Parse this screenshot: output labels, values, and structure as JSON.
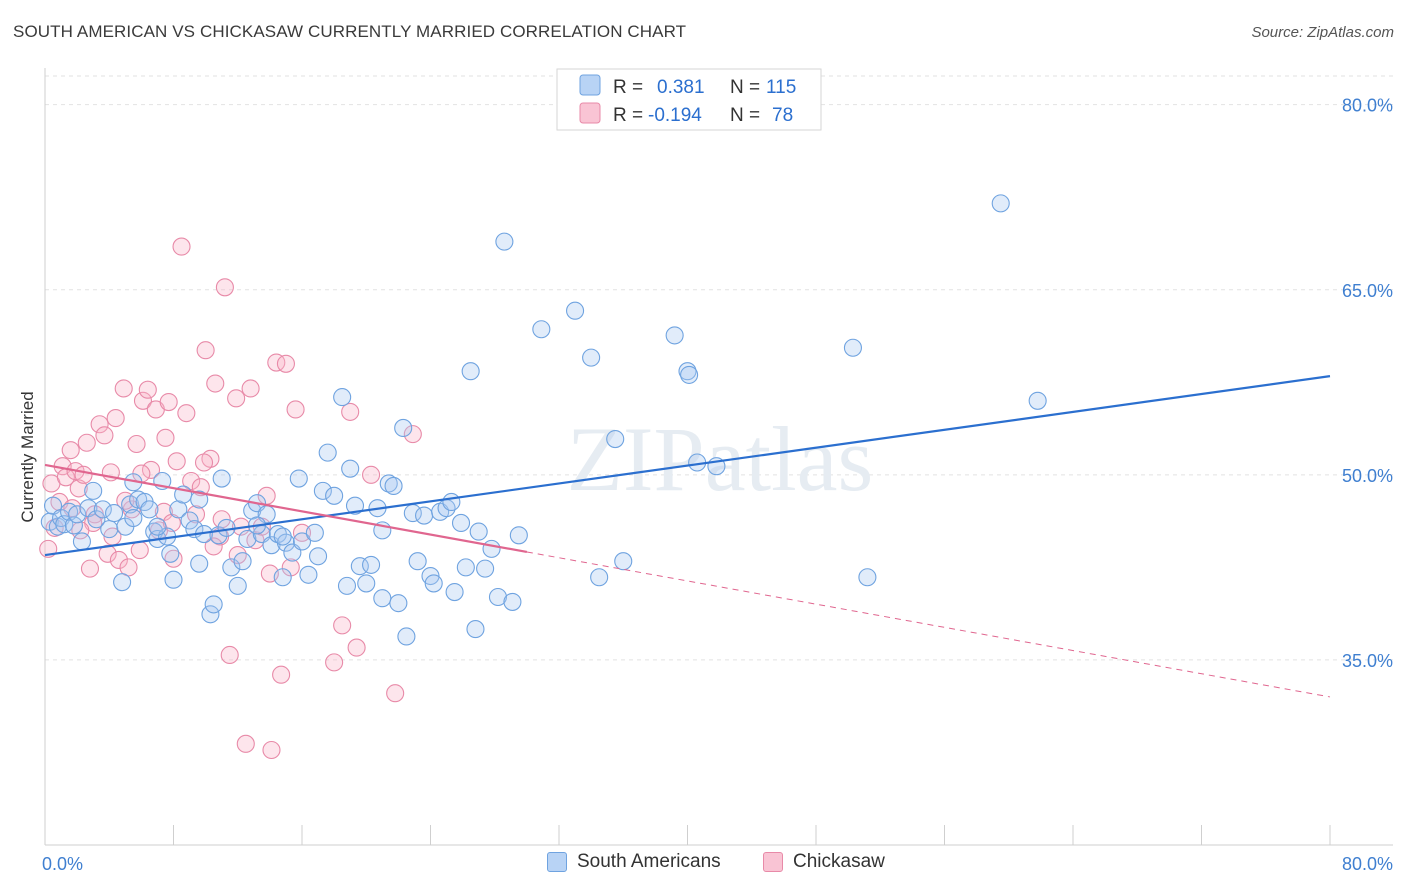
{
  "header": {
    "title": "SOUTH AMERICAN VS CHICKASAW CURRENTLY MARRIED CORRELATION CHART",
    "source": "Source: ZipAtlas.com"
  },
  "watermark": "ZIPatlas",
  "chart_data": {
    "type": "scatter",
    "title": "SOUTH AMERICAN VS CHICKASAW CURRENTLY MARRIED CORRELATION CHART",
    "xlabel": "",
    "ylabel": "Currently Married",
    "xlim": [
      0,
      80
    ],
    "ylim": [
      20,
      82
    ],
    "x_tick_labels": [
      "0.0%",
      "80.0%"
    ],
    "y_ticks": [
      35,
      50,
      65,
      80
    ],
    "y_tick_labels": [
      "35.0%",
      "50.0%",
      "65.0%",
      "80.0%"
    ],
    "grid": true,
    "legend_position": "top-center",
    "legend": [
      {
        "name": "South Americans",
        "r_label": "R =",
        "r": "0.381",
        "n_label": "N =",
        "n": "115",
        "color": "#6fa3e0",
        "fill": "#b8d3f5"
      },
      {
        "name": "Chickasaw",
        "r_label": "R =",
        "r": "-0.194",
        "n_label": "N =",
        "n": "78",
        "color": "#e88aa8",
        "fill": "#f9c4d4"
      }
    ],
    "series": [
      {
        "name": "South Americans",
        "color": "#6fa3e0",
        "trend": {
          "x0": 0,
          "y0": 43.5,
          "x1": 80,
          "y1": 58.0,
          "color": "#2b6fcf"
        },
        "points": [
          [
            0.3,
            46.2
          ],
          [
            0.5,
            47.5
          ],
          [
            0.8,
            45.8
          ],
          [
            1.0,
            46.5
          ],
          [
            1.2,
            46.0
          ],
          [
            1.5,
            47.0
          ],
          [
            1.8,
            45.9
          ],
          [
            2.0,
            46.8
          ],
          [
            2.3,
            44.6
          ],
          [
            2.7,
            47.3
          ],
          [
            3.0,
            48.7
          ],
          [
            3.2,
            46.4
          ],
          [
            3.6,
            47.2
          ],
          [
            4.0,
            45.6
          ],
          [
            4.3,
            46.9
          ],
          [
            4.8,
            41.3
          ],
          [
            5.0,
            45.8
          ],
          [
            5.3,
            47.6
          ],
          [
            5.5,
            49.4
          ],
          [
            5.8,
            48.0
          ],
          [
            6.2,
            47.8
          ],
          [
            6.5,
            47.2
          ],
          [
            6.8,
            45.4
          ],
          [
            7.0,
            44.8
          ],
          [
            7.3,
            49.5
          ],
          [
            7.6,
            45.0
          ],
          [
            7.8,
            43.6
          ],
          [
            8.0,
            41.5
          ],
          [
            8.3,
            47.2
          ],
          [
            8.6,
            48.4
          ],
          [
            9.0,
            46.3
          ],
          [
            9.3,
            45.6
          ],
          [
            9.6,
            48.0
          ],
          [
            9.9,
            45.2
          ],
          [
            10.3,
            38.7
          ],
          [
            10.5,
            39.5
          ],
          [
            10.8,
            45.1
          ],
          [
            11.0,
            49.7
          ],
          [
            11.3,
            45.7
          ],
          [
            11.6,
            42.5
          ],
          [
            12.0,
            41.0
          ],
          [
            12.3,
            43.0
          ],
          [
            12.6,
            44.8
          ],
          [
            12.9,
            47.1
          ],
          [
            13.2,
            47.7
          ],
          [
            13.5,
            45.2
          ],
          [
            13.8,
            46.8
          ],
          [
            14.1,
            44.3
          ],
          [
            14.5,
            45.2
          ],
          [
            14.8,
            41.7
          ],
          [
            15.0,
            44.5
          ],
          [
            15.4,
            43.7
          ],
          [
            15.8,
            49.7
          ],
          [
            16.0,
            44.6
          ],
          [
            16.4,
            41.9
          ],
          [
            16.8,
            45.3
          ],
          [
            17.0,
            43.4
          ],
          [
            17.3,
            48.7
          ],
          [
            17.6,
            51.8
          ],
          [
            18.0,
            48.3
          ],
          [
            18.5,
            56.3
          ],
          [
            18.8,
            41.0
          ],
          [
            19.0,
            50.5
          ],
          [
            19.3,
            47.5
          ],
          [
            19.6,
            42.6
          ],
          [
            20.0,
            41.2
          ],
          [
            20.3,
            42.7
          ],
          [
            20.7,
            47.3
          ],
          [
            21.0,
            40.0
          ],
          [
            21.4,
            49.3
          ],
          [
            21.7,
            49.1
          ],
          [
            22.0,
            39.6
          ],
          [
            22.3,
            53.8
          ],
          [
            22.5,
            36.9
          ],
          [
            22.9,
            46.9
          ],
          [
            23.2,
            43.0
          ],
          [
            23.6,
            46.7
          ],
          [
            24.0,
            41.8
          ],
          [
            24.2,
            41.2
          ],
          [
            24.6,
            47.0
          ],
          [
            25.0,
            47.3
          ],
          [
            25.3,
            47.8
          ],
          [
            25.5,
            40.5
          ],
          [
            25.9,
            46.1
          ],
          [
            26.2,
            42.5
          ],
          [
            26.5,
            58.4
          ],
          [
            26.8,
            37.5
          ],
          [
            27.0,
            45.4
          ],
          [
            27.4,
            42.4
          ],
          [
            27.8,
            44.0
          ],
          [
            28.2,
            40.1
          ],
          [
            28.6,
            68.9
          ],
          [
            29.1,
            39.7
          ],
          [
            29.5,
            45.1
          ],
          [
            30.9,
            61.8
          ],
          [
            33.0,
            63.3
          ],
          [
            34.0,
            59.5
          ],
          [
            34.5,
            41.7
          ],
          [
            35.5,
            52.9
          ],
          [
            36.0,
            43.0
          ],
          [
            39.2,
            61.3
          ],
          [
            40.0,
            58.4
          ],
          [
            40.1,
            58.1
          ],
          [
            40.6,
            51.0
          ],
          [
            41.8,
            50.7
          ],
          [
            50.3,
            60.3
          ],
          [
            51.2,
            41.7
          ],
          [
            59.5,
            72.0
          ],
          [
            61.8,
            56.0
          ],
          [
            7.0,
            45.8
          ],
          [
            5.5,
            46.5
          ],
          [
            9.6,
            42.8
          ],
          [
            13.2,
            45.9
          ],
          [
            21.0,
            45.5
          ],
          [
            14.8,
            45.0
          ]
        ]
      },
      {
        "name": "Chickasaw",
        "color": "#e88aa8",
        "trend": {
          "x0": 0,
          "y0": 50.8,
          "x1": 80,
          "y1": 32.0,
          "solid_until": 30,
          "color": "#e0668f"
        },
        "points": [
          [
            0.2,
            44.0
          ],
          [
            0.4,
            49.3
          ],
          [
            0.6,
            45.7
          ],
          [
            0.9,
            47.8
          ],
          [
            1.1,
            50.7
          ],
          [
            1.3,
            49.8
          ],
          [
            1.6,
            52.0
          ],
          [
            1.9,
            50.3
          ],
          [
            2.1,
            48.9
          ],
          [
            2.4,
            50.0
          ],
          [
            2.6,
            52.6
          ],
          [
            2.8,
            42.4
          ],
          [
            3.1,
            46.8
          ],
          [
            3.4,
            54.1
          ],
          [
            3.7,
            53.2
          ],
          [
            3.9,
            43.6
          ],
          [
            4.1,
            50.2
          ],
          [
            4.4,
            54.6
          ],
          [
            4.6,
            43.1
          ],
          [
            4.9,
            57.0
          ],
          [
            5.2,
            42.5
          ],
          [
            5.4,
            47.2
          ],
          [
            5.7,
            52.5
          ],
          [
            5.9,
            43.9
          ],
          [
            6.1,
            56.0
          ],
          [
            6.4,
            56.9
          ],
          [
            6.6,
            50.4
          ],
          [
            6.9,
            55.3
          ],
          [
            7.1,
            45.5
          ],
          [
            7.4,
            47.0
          ],
          [
            7.7,
            55.9
          ],
          [
            7.9,
            46.1
          ],
          [
            8.2,
            51.1
          ],
          [
            8.5,
            68.5
          ],
          [
            8.8,
            55.0
          ],
          [
            9.1,
            49.5
          ],
          [
            9.4,
            46.8
          ],
          [
            9.7,
            49.0
          ],
          [
            10.0,
            60.1
          ],
          [
            10.3,
            51.3
          ],
          [
            10.6,
            57.4
          ],
          [
            10.9,
            45.0
          ],
          [
            11.2,
            65.2
          ],
          [
            11.5,
            35.4
          ],
          [
            11.9,
            56.2
          ],
          [
            12.2,
            45.8
          ],
          [
            12.5,
            28.2
          ],
          [
            12.8,
            57.0
          ],
          [
            13.1,
            44.7
          ],
          [
            13.5,
            45.8
          ],
          [
            13.8,
            48.3
          ],
          [
            14.1,
            27.7
          ],
          [
            14.4,
            59.1
          ],
          [
            14.7,
            33.8
          ],
          [
            15.0,
            59.0
          ],
          [
            15.3,
            42.5
          ],
          [
            15.6,
            55.3
          ],
          [
            16.0,
            45.3
          ],
          [
            18.0,
            34.8
          ],
          [
            18.5,
            37.8
          ],
          [
            19.0,
            55.1
          ],
          [
            19.4,
            36.0
          ],
          [
            20.3,
            50.0
          ],
          [
            21.8,
            32.3
          ],
          [
            22.9,
            53.3
          ],
          [
            8.0,
            43.2
          ],
          [
            3.0,
            46.1
          ],
          [
            1.7,
            47.3
          ],
          [
            6.0,
            50.1
          ],
          [
            11.0,
            46.4
          ],
          [
            2.2,
            45.5
          ],
          [
            9.9,
            51.0
          ],
          [
            12.0,
            43.5
          ],
          [
            4.2,
            45.0
          ],
          [
            7.5,
            53.0
          ],
          [
            5.0,
            47.9
          ],
          [
            10.5,
            44.2
          ],
          [
            14.0,
            42.0
          ]
        ]
      }
    ]
  }
}
